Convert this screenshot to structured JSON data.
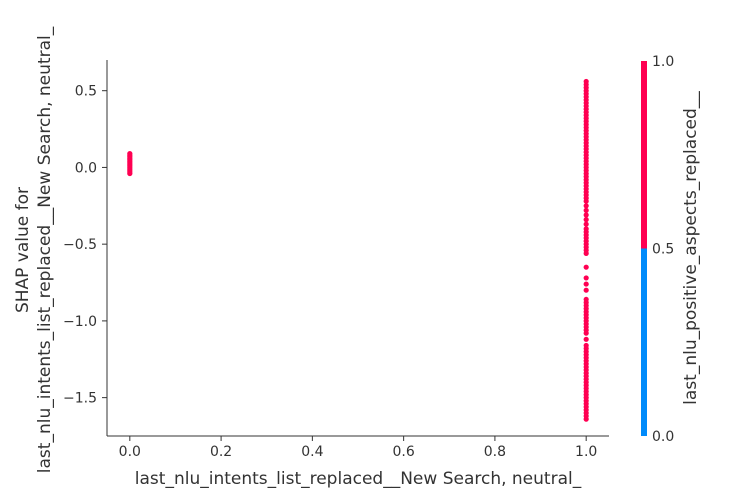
{
  "chart_data": {
    "type": "scatter",
    "title": "",
    "xlabel": "last_nlu_intents_list_replaced__New Search, neutral_",
    "ylabel_lines": [
      "SHAP value for",
      "last_nlu_intents_list_replaced__New Search, neutral_"
    ],
    "xlim": [
      -0.05,
      1.05
    ],
    "ylim": [
      -1.75,
      0.7
    ],
    "x_ticks": [
      0.0,
      0.2,
      0.4,
      0.6,
      0.8,
      1.0
    ],
    "x_tick_labels": [
      "0.0",
      "0.2",
      "0.4",
      "0.6",
      "0.8",
      "1.0"
    ],
    "y_ticks": [
      0.5,
      0.0,
      -0.5,
      -1.0,
      -1.5
    ],
    "y_tick_labels": [
      "0.5",
      "0.0",
      "−0.5",
      "−1.0",
      "−1.5"
    ],
    "grid": false,
    "colorbar": {
      "label": "last_nlu_positive_aspects_replaced__",
      "range": [
        0.0,
        1.0
      ],
      "ticks": [
        1.0,
        0.5,
        0.0
      ],
      "tick_labels": [
        "1.0",
        "0.5",
        "0.0"
      ],
      "low_color": "#008bfb",
      "high_color": "#ff0052"
    },
    "point_color": "#ff0052",
    "point_groups": [
      {
        "x": 0.0,
        "y": [
          0.09,
          0.08,
          0.07,
          0.06,
          0.05,
          0.04,
          0.03,
          0.02,
          0.01,
          0.0,
          -0.01,
          -0.02,
          -0.03,
          -0.04
        ]
      },
      {
        "x": 1.0,
        "y": [
          0.56,
          0.54,
          0.52,
          0.5,
          0.48,
          0.46,
          0.44,
          0.42,
          0.4,
          0.38,
          0.36,
          0.34,
          0.32,
          0.3,
          0.28,
          0.26,
          0.24,
          0.22,
          0.2,
          0.18,
          0.16,
          0.14,
          0.12,
          0.1,
          0.08,
          0.06,
          0.04,
          0.02,
          0.0,
          -0.02,
          -0.04,
          -0.06,
          -0.08,
          -0.1,
          -0.12,
          -0.14,
          -0.16,
          -0.18,
          -0.2,
          -0.22,
          -0.25,
          -0.28,
          -0.31,
          -0.34,
          -0.37,
          -0.4,
          -0.42,
          -0.44,
          -0.46,
          -0.48,
          -0.5,
          -0.52,
          -0.54,
          -0.56,
          -0.65,
          -0.72,
          -0.76,
          -0.8,
          -0.86,
          -0.88,
          -0.9,
          -0.92,
          -0.94,
          -0.96,
          -0.98,
          -1.0,
          -1.02,
          -1.04,
          -1.06,
          -1.08,
          -1.12,
          -1.16,
          -1.18,
          -1.2,
          -1.22,
          -1.24,
          -1.26,
          -1.28,
          -1.3,
          -1.32,
          -1.34,
          -1.36,
          -1.38,
          -1.4,
          -1.42,
          -1.44,
          -1.46,
          -1.48,
          -1.5,
          -1.52,
          -1.54,
          -1.56,
          -1.58,
          -1.6,
          -1.62,
          -1.64
        ]
      }
    ]
  }
}
